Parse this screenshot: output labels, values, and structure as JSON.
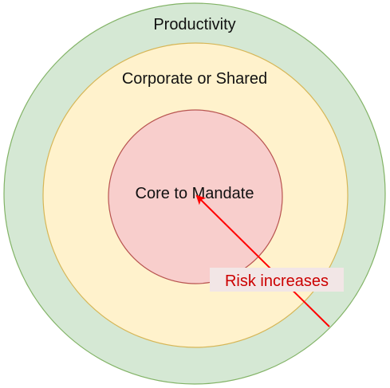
{
  "rings": {
    "outer": {
      "label": "Productivity",
      "fill": "#d5e8d4",
      "stroke": "#82b366"
    },
    "middle": {
      "label": "Corporate or Shared",
      "fill": "#fff2cc",
      "stroke": "#d6b656"
    },
    "inner": {
      "label": "Core to Mandate",
      "fill": "#f8cecc",
      "stroke": "#b85450"
    }
  },
  "arrow": {
    "label": "Risk increases",
    "color": "#ff0000",
    "label_color": "#cc0000",
    "label_background": "#f2e6e6"
  }
}
